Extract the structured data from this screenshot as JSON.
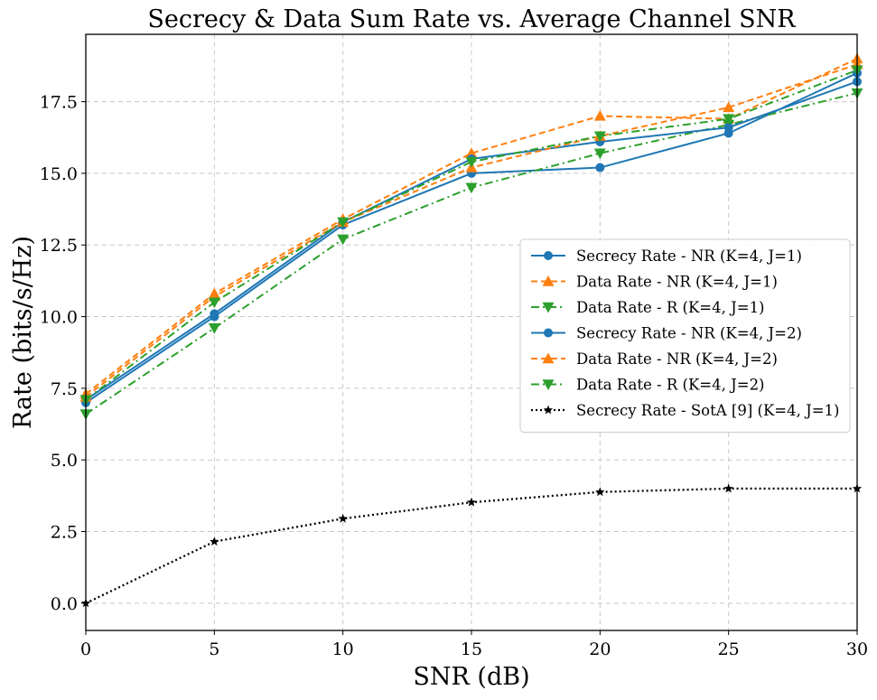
{
  "chart_data": {
    "type": "line",
    "title": "Secrecy & Data Sum Rate vs. Average Channel SNR",
    "xlabel": "SNR (dB)",
    "ylabel": "Rate (bits/s/Hz)",
    "xlim": [
      0,
      30
    ],
    "ylim": [
      -0.95,
      19.85
    ],
    "xticks": [
      0,
      5,
      10,
      15,
      20,
      25,
      30
    ],
    "xtick_labels": [
      "0",
      "5",
      "10",
      "15",
      "20",
      "25",
      "30"
    ],
    "yticks": [
      0,
      2.5,
      5,
      7.5,
      10,
      12.5,
      15,
      17.5
    ],
    "ytick_labels": [
      "0.0",
      "2.5",
      "5.0",
      "7.5",
      "10.0",
      "12.5",
      "15.0",
      "17.5"
    ],
    "grid": true,
    "legend_position": "center-right",
    "x": [
      0,
      5,
      10,
      15,
      20,
      25,
      30
    ],
    "series": [
      {
        "name": "Secrecy Rate - NR (K=4, J=1)",
        "color": "#1f77b4",
        "dash": "solid",
        "marker": "circle",
        "values": [
          7.0,
          10.0,
          13.2,
          15.0,
          15.2,
          16.4,
          18.5
        ]
      },
      {
        "name": "Data Rate - NR (K=4, J=1)",
        "color": "#ff7f0e",
        "dash": "dashed",
        "marker": "triangle-up",
        "values": [
          7.3,
          10.8,
          13.4,
          15.7,
          17.0,
          16.9,
          19.0
        ]
      },
      {
        "name": "Data Rate - R (K=4, J=1)",
        "color": "#2ca02c",
        "dash": "dashdot",
        "marker": "triangle-down",
        "values": [
          6.6,
          9.6,
          12.7,
          14.5,
          15.7,
          16.7,
          17.8
        ]
      },
      {
        "name": "Secrecy Rate - NR (K=4, J=2)",
        "color": "#1f77b4",
        "dash": "solid",
        "marker": "circle",
        "values": [
          7.1,
          10.1,
          13.3,
          15.5,
          16.1,
          16.6,
          18.2
        ]
      },
      {
        "name": "Data Rate - NR (K=4, J=2)",
        "color": "#ff7f0e",
        "dash": "dashed",
        "marker": "triangle-up",
        "values": [
          7.2,
          10.7,
          13.3,
          15.2,
          16.3,
          17.3,
          18.8
        ]
      },
      {
        "name": "Data Rate - R (K=4, J=2)",
        "color": "#2ca02c",
        "dash": "dashdot",
        "marker": "triangle-down",
        "values": [
          7.1,
          10.5,
          13.3,
          15.4,
          16.3,
          16.9,
          18.6
        ]
      },
      {
        "name": "Secrecy Rate - SotA [9] (K=4, J=1)",
        "color": "#000000",
        "dash": "dotted",
        "marker": "star",
        "values": [
          0.0,
          2.15,
          2.95,
          3.52,
          3.88,
          4.0,
          4.0
        ]
      }
    ]
  }
}
